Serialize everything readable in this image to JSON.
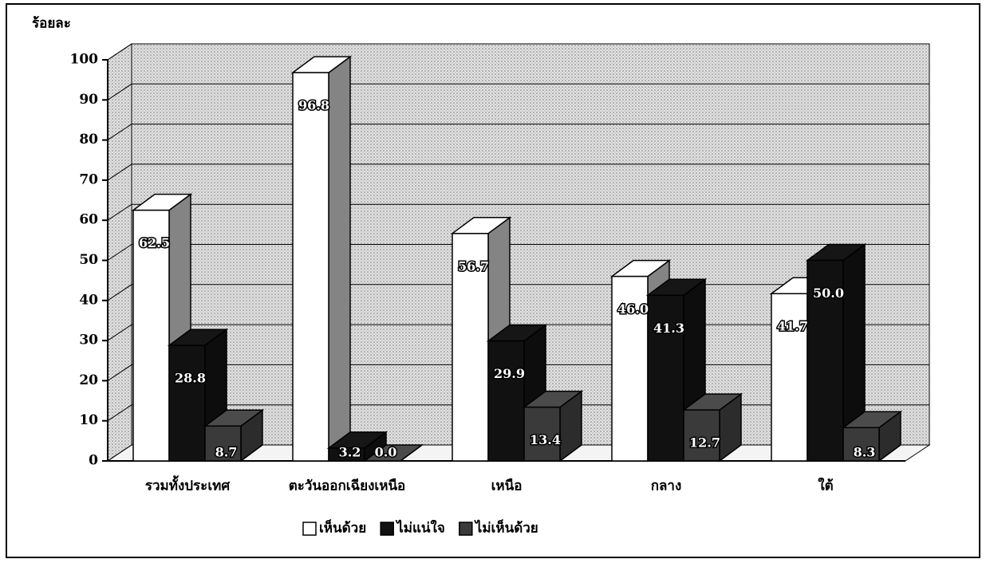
{
  "chart_data": {
    "type": "bar3d",
    "y_label": "ร้อยละ",
    "categories": [
      "รวมทั้งประเทศ",
      "ตะวันออกเฉียงเหนือ",
      "เหนือ",
      "กลาง",
      "ใต้"
    ],
    "series": [
      {
        "name": "เห็นด้วย",
        "color": "#ffffff",
        "values": [
          62.5,
          96.8,
          56.7,
          46.0,
          41.7
        ],
        "value_labels": [
          "62.5",
          "96.8",
          "56.7",
          "46.0",
          "41.7"
        ]
      },
      {
        "name": "ไม่แน่ใจ",
        "color": "#111111",
        "values": [
          28.8,
          3.2,
          29.9,
          41.3,
          50.0
        ],
        "value_labels": [
          "28.8",
          "3.2",
          "29.9",
          "41.3",
          "50.0"
        ]
      },
      {
        "name": "ไม่เห็นด้วย",
        "color": "#3a3a3a",
        "values": [
          8.7,
          0.0,
          13.4,
          12.7,
          8.3
        ],
        "value_labels": [
          "8.7",
          "0.0",
          "13.4",
          "12.7",
          "8.3"
        ]
      }
    ],
    "ylim": [
      0,
      100
    ],
    "yticks": [
      0,
      10,
      20,
      30,
      40,
      50,
      60,
      70,
      80,
      90,
      100
    ],
    "grid": true,
    "legend": "bottom"
  }
}
